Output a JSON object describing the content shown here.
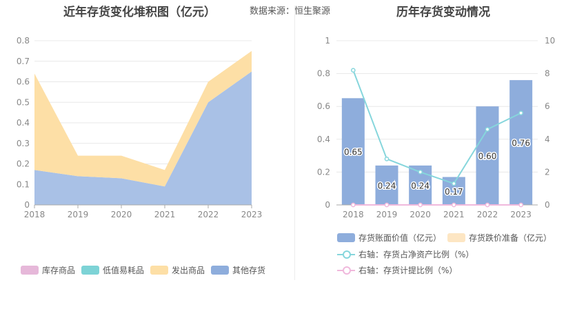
{
  "source_text": "数据来源：恒生聚源",
  "chart_data": [
    {
      "type": "area",
      "title": "近年存货变化堆积图（亿元）",
      "x": [
        "2018",
        "2019",
        "2020",
        "2021",
        "2022",
        "2023"
      ],
      "ylim": [
        0,
        0.8
      ],
      "yticks": [
        "0",
        "0.1",
        "0.2",
        "0.3",
        "0.4",
        "0.5",
        "0.6",
        "0.7",
        "0.8"
      ],
      "grid": true,
      "legend_position": "bottom",
      "series": [
        {
          "name": "库存商品",
          "color": "#e6b8d9",
          "values": [
            0,
            0,
            0,
            0,
            0,
            0
          ]
        },
        {
          "name": "低值易耗品",
          "color": "#7dd3d6",
          "values": [
            0,
            0,
            0,
            0,
            0,
            0
          ]
        },
        {
          "name": "发出商品",
          "color": "#fddfa6",
          "values": [
            0.47,
            0.1,
            0.11,
            0.08,
            0.1,
            0.1
          ]
        },
        {
          "name": "其他存货",
          "color": "#a9c1e6",
          "values": [
            0.17,
            0.14,
            0.13,
            0.09,
            0.5,
            0.65
          ]
        }
      ]
    },
    {
      "type": "bar",
      "title": "历年存货变动情况",
      "categories": [
        "2018",
        "2019",
        "2020",
        "2021",
        "2022",
        "2023"
      ],
      "ylim": [
        0,
        1
      ],
      "yticks": [
        "0",
        "0.2",
        "0.4",
        "0.6",
        "0.8",
        "1"
      ],
      "y2lim": [
        0,
        10
      ],
      "y2ticks": [
        "0",
        "2",
        "4",
        "6",
        "8",
        "10"
      ],
      "grid": true,
      "legend_position": "bottom",
      "series": [
        {
          "name": "存货账面价值（亿元）",
          "kind": "bar",
          "color": "#8eaddc",
          "values": [
            0.65,
            0.24,
            0.24,
            0.17,
            0.6,
            0.76
          ],
          "labels": [
            "0.65",
            "0.24",
            "0.24",
            "0.17",
            "0.60",
            "0.76"
          ]
        },
        {
          "name": "存货跌价准备（亿元）",
          "kind": "bar",
          "color": "#fde6c3",
          "values": [
            0,
            0,
            0,
            0,
            0,
            0
          ]
        },
        {
          "name": "右轴：存货占净资产比例（%）",
          "kind": "line",
          "axis": "right",
          "color": "#86d6dc",
          "values": [
            8.2,
            2.8,
            2.0,
            1.3,
            4.6,
            5.6
          ]
        },
        {
          "name": "右轴：存货计提比例（%）",
          "kind": "line",
          "axis": "right",
          "color": "#f0b8dc",
          "values": [
            0,
            0,
            0,
            0,
            0,
            0
          ]
        }
      ]
    }
  ]
}
